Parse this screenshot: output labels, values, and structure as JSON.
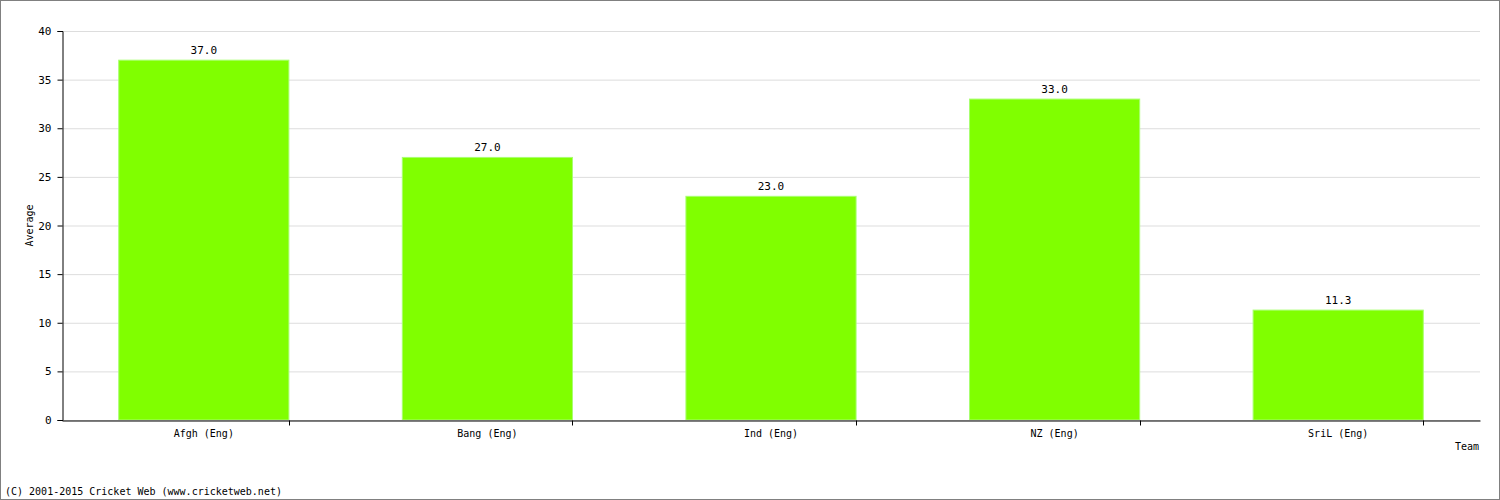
{
  "chart_data": {
    "type": "bar",
    "x_label": "Team",
    "y_label": "Average",
    "annotations": [
      "(C) 2001-2015 Cricket Web (www.cricketweb.net)"
    ],
    "categories": [
      "Afgh (Eng)",
      "Bang (Eng)",
      "Ind (Eng)",
      "NZ (Eng)",
      "SriL (Eng)"
    ],
    "values": [
      37.0,
      27.0,
      23.0,
      33.0,
      11.3
    ],
    "value_labels": [
      "37.0",
      "27.0",
      "23.0",
      "33.0",
      "11.3"
    ],
    "color": "#80ff00",
    "ylim": [
      0,
      40
    ],
    "yticks": [
      0,
      5,
      10,
      15,
      20,
      25,
      30,
      35,
      40
    ],
    "grid": true,
    "data_labels": true
  }
}
